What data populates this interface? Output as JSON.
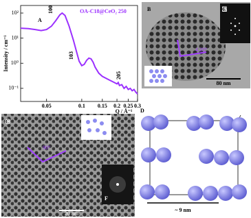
{
  "chart_data": {
    "type": "line",
    "title": "OA-C18@CeO₂ 250",
    "panel_label": "A",
    "x_label": "Q / Å⁻¹",
    "y_label": "Intensity / cm⁻¹",
    "x": [
      0.03,
      0.035,
      0.04,
      0.045,
      0.05,
      0.055,
      0.06,
      0.065,
      0.068,
      0.072,
      0.078,
      0.085,
      0.09,
      0.095,
      0.1,
      0.105,
      0.11,
      0.115,
      0.12,
      0.125,
      0.13,
      0.14,
      0.15,
      0.17,
      0.19,
      0.2,
      0.205,
      0.21,
      0.22,
      0.23,
      0.24,
      0.25,
      0.26,
      0.27,
      0.28,
      0.29,
      0.3
    ],
    "values": [
      25,
      24,
      22,
      20,
      22,
      30,
      50,
      85,
      100,
      80,
      30,
      8,
      3,
      1.2,
      0.8,
      0.9,
      1.3,
      1.6,
      1.5,
      1.1,
      0.7,
      0.4,
      0.3,
      0.22,
      0.17,
      0.15,
      0.17,
      0.13,
      0.14,
      0.1,
      0.12,
      0.09,
      0.1,
      0.08,
      0.09,
      0.07,
      0.06
    ],
    "color": "#9b30ff",
    "xlim": [
      0.03,
      0.3
    ],
    "ylim": [
      0.03,
      200
    ],
    "xscale": "log",
    "yscale": "log",
    "xticks": [
      0.05,
      0.1,
      0.15,
      0.2,
      0.25,
      0.3
    ],
    "yticks": [
      {
        "value": 0.1,
        "label": "10⁻¹"
      },
      {
        "value": 1,
        "label": "10⁰"
      },
      {
        "value": 10,
        "label": "10¹"
      },
      {
        "value": 100,
        "label": "10²"
      }
    ],
    "annotations": [
      "100",
      "103",
      "205"
    ]
  },
  "panels": {
    "b": {
      "label": "B",
      "angle": "4.20°",
      "scale_bar": "80 nm"
    },
    "c": {
      "label": "C",
      "angle": "90°",
      "scale_bar": "20 nm"
    },
    "d": {
      "label": "D",
      "size": "~ 9 nm"
    },
    "e": {
      "label": "E"
    },
    "f": {
      "label": "F"
    }
  }
}
